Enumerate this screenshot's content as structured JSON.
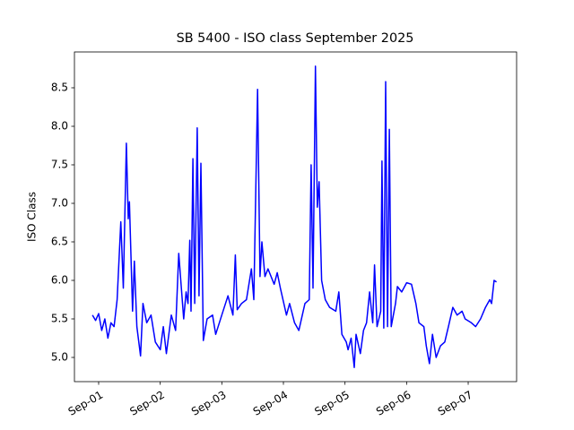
{
  "chart_data": {
    "type": "line",
    "title": "SB 5400 - ISO class September 2025",
    "y_label": "ISO Class",
    "x": [
      0.9,
      0.95,
      1.0,
      1.05,
      1.1,
      1.15,
      1.2,
      1.25,
      1.3,
      1.36,
      1.4,
      1.45,
      1.48,
      1.5,
      1.55,
      1.58,
      1.62,
      1.68,
      1.72,
      1.78,
      1.85,
      1.92,
      2.0,
      2.05,
      2.1,
      2.18,
      2.25,
      2.3,
      2.38,
      2.42,
      2.45,
      2.48,
      2.5,
      2.53,
      2.56,
      2.6,
      2.63,
      2.66,
      2.7,
      2.76,
      2.85,
      2.9,
      3.0,
      3.1,
      3.18,
      3.22,
      3.25,
      3.32,
      3.4,
      3.48,
      3.52,
      3.58,
      3.62,
      3.65,
      3.7,
      3.75,
      3.85,
      3.9,
      3.95,
      4.05,
      4.1,
      4.18,
      4.25,
      4.35,
      4.42,
      4.45,
      4.48,
      4.52,
      4.55,
      4.58,
      4.62,
      4.68,
      4.75,
      4.85,
      4.9,
      4.95,
      5.02,
      5.05,
      5.1,
      5.15,
      5.18,
      5.25,
      5.3,
      5.35,
      5.4,
      5.45,
      5.48,
      5.52,
      5.58,
      5.6,
      5.63,
      5.66,
      5.69,
      5.72,
      5.75,
      5.82,
      5.85,
      5.92,
      6.0,
      6.08,
      6.15,
      6.2,
      6.28,
      6.32,
      6.37,
      6.42,
      6.48,
      6.55,
      6.62,
      6.68,
      6.75,
      6.82,
      6.9,
      6.95,
      7.05,
      7.12,
      7.2,
      7.28,
      7.35,
      7.38,
      7.42,
      7.46
    ],
    "series": [
      {
        "name": "ISO Class",
        "color": "#0000ff",
        "values": [
          5.55,
          5.48,
          5.57,
          5.35,
          5.5,
          5.25,
          5.45,
          5.4,
          5.75,
          6.76,
          5.9,
          7.78,
          6.8,
          7.02,
          5.6,
          6.25,
          5.4,
          5.02,
          5.7,
          5.45,
          5.55,
          5.2,
          5.1,
          5.4,
          5.05,
          5.55,
          5.35,
          6.35,
          5.5,
          5.85,
          5.7,
          6.52,
          5.6,
          7.58,
          5.7,
          7.98,
          5.8,
          7.52,
          5.22,
          5.5,
          5.55,
          5.3,
          5.55,
          5.8,
          5.55,
          6.33,
          5.62,
          5.7,
          5.75,
          6.15,
          5.75,
          8.48,
          6.05,
          6.5,
          6.05,
          6.15,
          5.95,
          6.1,
          5.9,
          5.55,
          5.7,
          5.45,
          5.35,
          5.7,
          5.75,
          7.5,
          5.9,
          8.78,
          6.95,
          7.28,
          6.0,
          5.75,
          5.65,
          5.6,
          5.85,
          5.3,
          5.2,
          5.1,
          5.25,
          4.87,
          5.3,
          5.05,
          5.35,
          5.45,
          5.85,
          5.45,
          6.2,
          5.4,
          5.6,
          7.55,
          5.38,
          8.58,
          5.4,
          7.96,
          5.4,
          5.7,
          5.92,
          5.85,
          5.97,
          5.95,
          5.7,
          5.45,
          5.4,
          5.15,
          4.92,
          5.3,
          5.0,
          5.15,
          5.2,
          5.4,
          5.65,
          5.55,
          5.6,
          5.5,
          5.45,
          5.4,
          5.5,
          5.65,
          5.75,
          5.7,
          6.0,
          5.98
        ]
      }
    ],
    "xlim": [
      0.607,
      7.786
    ],
    "xticks": [
      {
        "value": 1,
        "label": "Sep-01"
      },
      {
        "value": 2,
        "label": "Sep-02"
      },
      {
        "value": 3,
        "label": "Sep-03"
      },
      {
        "value": 4,
        "label": "Sep-04"
      },
      {
        "value": 5,
        "label": "Sep-05"
      },
      {
        "value": 6,
        "label": "Sep-06"
      },
      {
        "value": 7,
        "label": "Sep-07"
      }
    ],
    "ylim": [
      4.686,
      8.965
    ],
    "yticks": [
      {
        "value": 5,
        "label": "5.0"
      },
      5.5,
      {
        "value": 6,
        "label": "6.0"
      },
      6.5,
      {
        "value": 7,
        "label": "7.0"
      },
      7.5,
      {
        "value": 8,
        "label": "8.0"
      },
      8.5
    ]
  }
}
